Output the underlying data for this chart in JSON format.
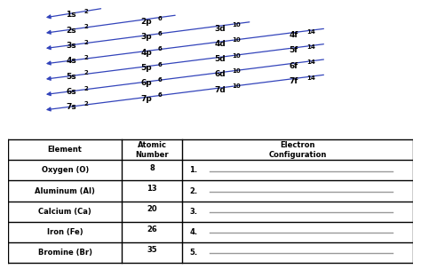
{
  "bg_color": "#ffffff",
  "diagram_labels": [
    {
      "text": "1s",
      "sup": "2",
      "row": 0,
      "col": 0
    },
    {
      "text": "2s",
      "sup": "2",
      "row": 1,
      "col": 0
    },
    {
      "text": "2p",
      "sup": "6",
      "row": 1,
      "col": 1
    },
    {
      "text": "3s",
      "sup": "2",
      "row": 2,
      "col": 0
    },
    {
      "text": "3p",
      "sup": "6",
      "row": 2,
      "col": 1
    },
    {
      "text": "3d",
      "sup": "10",
      "row": 2,
      "col": 2
    },
    {
      "text": "4s",
      "sup": "2",
      "row": 3,
      "col": 0
    },
    {
      "text": "4p",
      "sup": "6",
      "row": 3,
      "col": 1
    },
    {
      "text": "4d",
      "sup": "10",
      "row": 3,
      "col": 2
    },
    {
      "text": "4f",
      "sup": "14",
      "row": 3,
      "col": 3
    },
    {
      "text": "5s",
      "sup": "2",
      "row": 4,
      "col": 0
    },
    {
      "text": "5p",
      "sup": "6",
      "row": 4,
      "col": 1
    },
    {
      "text": "5d",
      "sup": "10",
      "row": 4,
      "col": 2
    },
    {
      "text": "5f",
      "sup": "14",
      "row": 4,
      "col": 3
    },
    {
      "text": "6s",
      "sup": "2",
      "row": 5,
      "col": 0
    },
    {
      "text": "6p",
      "sup": "6",
      "row": 5,
      "col": 1
    },
    {
      "text": "6d",
      "sup": "10",
      "row": 5,
      "col": 2
    },
    {
      "text": "6f",
      "sup": "14",
      "row": 5,
      "col": 3
    },
    {
      "text": "7s",
      "sup": "2",
      "row": 6,
      "col": 0
    },
    {
      "text": "7p",
      "sup": "6",
      "row": 6,
      "col": 1
    },
    {
      "text": "7d",
      "sup": "10",
      "row": 6,
      "col": 2
    },
    {
      "text": "7f",
      "sup": "14",
      "row": 6,
      "col": 3
    }
  ],
  "table_headers": [
    "Element",
    "Atomic\nNumber",
    "Electron\nConfiguration"
  ],
  "table_rows": [
    [
      "Oxygen (O)",
      "8",
      "1."
    ],
    [
      "Aluminum (Al)",
      "13",
      "2."
    ],
    [
      "Calcium (Ca)",
      "20",
      "3."
    ],
    [
      "Iron (Fe)",
      "26",
      "4."
    ],
    [
      "Bromine (Br)",
      "35",
      "5."
    ]
  ],
  "arrow_color": "#3344bb",
  "text_color": "#000000",
  "table_line_color": "#000000",
  "line_answer_color": "#999999"
}
